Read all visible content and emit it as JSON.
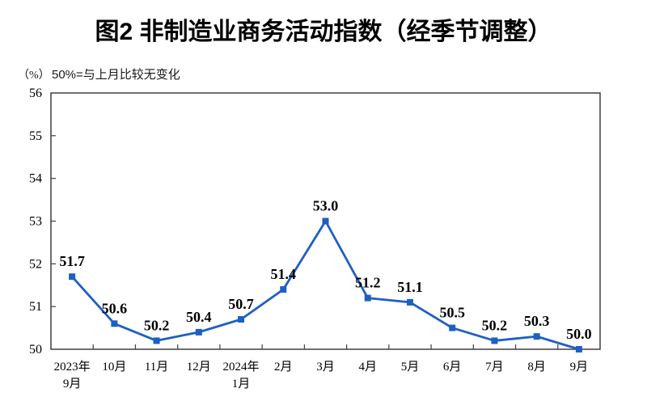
{
  "header": {
    "title": "图2 非制造业商务活动指数（经季节调整）"
  },
  "axis_notes": {
    "y_unit": "（%）",
    "note": "50%=与上月比较无变化"
  },
  "chart_data": {
    "type": "line",
    "title": "图2 非制造业商务活动指数（经季节调整）",
    "ylabel": "（%）",
    "annotation": "50%=与上月比较无变化",
    "categories": [
      "2023年9月",
      "10月",
      "11月",
      "12月",
      "2024年1月",
      "2月",
      "3月",
      "4月",
      "5月",
      "6月",
      "7月",
      "8月",
      "9月"
    ],
    "category_label_lines": [
      [
        "2023年",
        "9月"
      ],
      [
        "10月"
      ],
      [
        "11月"
      ],
      [
        "12月"
      ],
      [
        "2024年",
        "1月"
      ],
      [
        "2月"
      ],
      [
        "3月"
      ],
      [
        "4月"
      ],
      [
        "5月"
      ],
      [
        "6月"
      ],
      [
        "7月"
      ],
      [
        "8月"
      ],
      [
        "9月"
      ]
    ],
    "values": [
      51.7,
      50.6,
      50.2,
      50.4,
      50.7,
      51.4,
      53.0,
      51.2,
      51.1,
      50.5,
      50.2,
      50.3,
      50.0
    ],
    "point_labels": [
      "51.7",
      "50.6",
      "50.2",
      "50.4",
      "50.7",
      "51.4",
      "53.0",
      "51.2",
      "51.1",
      "50.5",
      "50.2",
      "50.3",
      "50.0"
    ],
    "ylim": [
      50,
      56
    ],
    "y_ticks": [
      50,
      51,
      52,
      53,
      54,
      55,
      56
    ],
    "grid": false,
    "legend_position": "none",
    "marker": "square",
    "line_color": "#1d60c4",
    "frame_color": "#3f3f3f",
    "text_color": "#000000"
  }
}
